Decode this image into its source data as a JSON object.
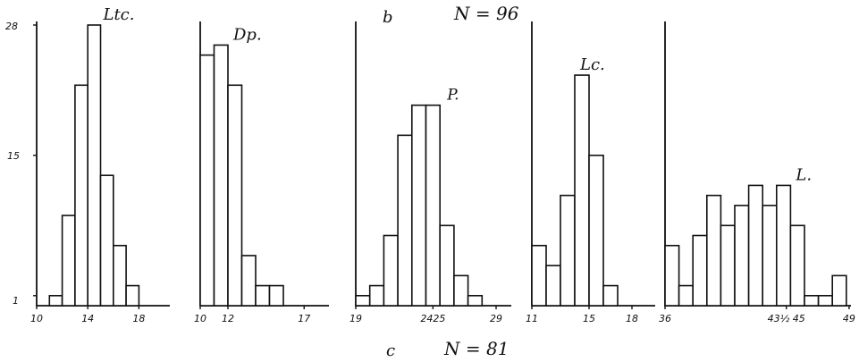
{
  "figure": {
    "panel_b_letter": "b",
    "panel_b_n": "N = 96",
    "panel_c_letter": "c",
    "panel_c_n": "N = 81",
    "y_ticks": [
      "28",
      "15",
      "1"
    ]
  },
  "chart_data": [
    {
      "type": "bar",
      "label": "Ltc.",
      "x_tick_labels": [
        {
          "text": "10",
          "bin": 0
        },
        {
          "text": "14",
          "bin": 4
        },
        {
          "text": "18",
          "bin": 8
        }
      ],
      "values": [
        1,
        9,
        22,
        28,
        13,
        6,
        2
      ],
      "bin_start": 1,
      "ylim": [
        0,
        28
      ]
    },
    {
      "type": "bar",
      "label": "Dp.",
      "x_tick_labels": [
        {
          "text": "10",
          "bin": 0
        },
        {
          "text": "12",
          "bin": 2
        },
        {
          "text": "17",
          "bin": 7.5
        }
      ],
      "values": [
        25,
        26,
        22,
        5,
        2,
        2
      ],
      "bin_start": 0,
      "ylim": [
        0,
        28
      ]
    },
    {
      "type": "bar",
      "label": "P.",
      "x_tick_labels": [
        {
          "text": "19",
          "bin": 0
        },
        {
          "text": "2425",
          "bin": 5.5
        },
        {
          "text": "29",
          "bin": 10
        }
      ],
      "values": [
        1,
        2,
        7,
        17,
        20,
        20,
        8,
        3,
        1
      ],
      "bin_start": 0,
      "ylim": [
        0,
        28
      ]
    },
    {
      "type": "bar",
      "label": "Lc.",
      "x_tick_labels": [
        {
          "text": "11",
          "bin": 0
        },
        {
          "text": "15",
          "bin": 4
        },
        {
          "text": "18",
          "bin": 7
        }
      ],
      "values": [
        6,
        4,
        11,
        23,
        15,
        2
      ],
      "bin_start": 0,
      "ylim": [
        0,
        28
      ]
    },
    {
      "type": "bar",
      "label": "L.",
      "x_tick_labels": [
        {
          "text": "36",
          "bin": 0
        },
        {
          "text": "43½ 45",
          "bin": 8.7
        },
        {
          "text": "49",
          "bin": 13.2
        }
      ],
      "values": [
        6,
        2,
        7,
        11,
        8,
        10,
        12,
        10,
        12,
        8,
        1,
        1,
        3
      ],
      "bin_start": 0,
      "ylim": [
        0,
        28
      ]
    }
  ]
}
